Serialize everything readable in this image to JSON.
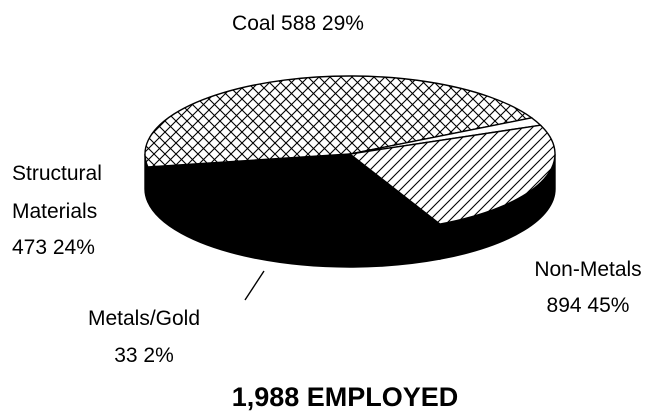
{
  "chart_data": {
    "type": "pie",
    "style": "3d",
    "title": "",
    "total_label": "1,988 EMPLOYED",
    "slices": [
      {
        "key": "coal",
        "name": "Coal",
        "value": 588,
        "percent": "29%",
        "value_text": "Coal  588  29%",
        "fill": "solid-black"
      },
      {
        "key": "non_metals",
        "name": "Non-Metals",
        "value": 894,
        "percent": "45%",
        "value_text": "894  45%",
        "fill": "crosshatch"
      },
      {
        "key": "metals_gold",
        "name": "Metals/Gold",
        "value": 33,
        "percent": "2%",
        "value_text": "33   2%",
        "fill": "white"
      },
      {
        "key": "structural",
        "name": "Structural Materials",
        "name_lines": [
          "Structural",
          "Materials"
        ],
        "value": 473,
        "percent": "24%",
        "value_text": "473  24%",
        "fill": "diagonal-hatch"
      }
    ],
    "colors": {
      "ink": "#000000",
      "background": "#ffffff",
      "side": "#000000"
    }
  }
}
